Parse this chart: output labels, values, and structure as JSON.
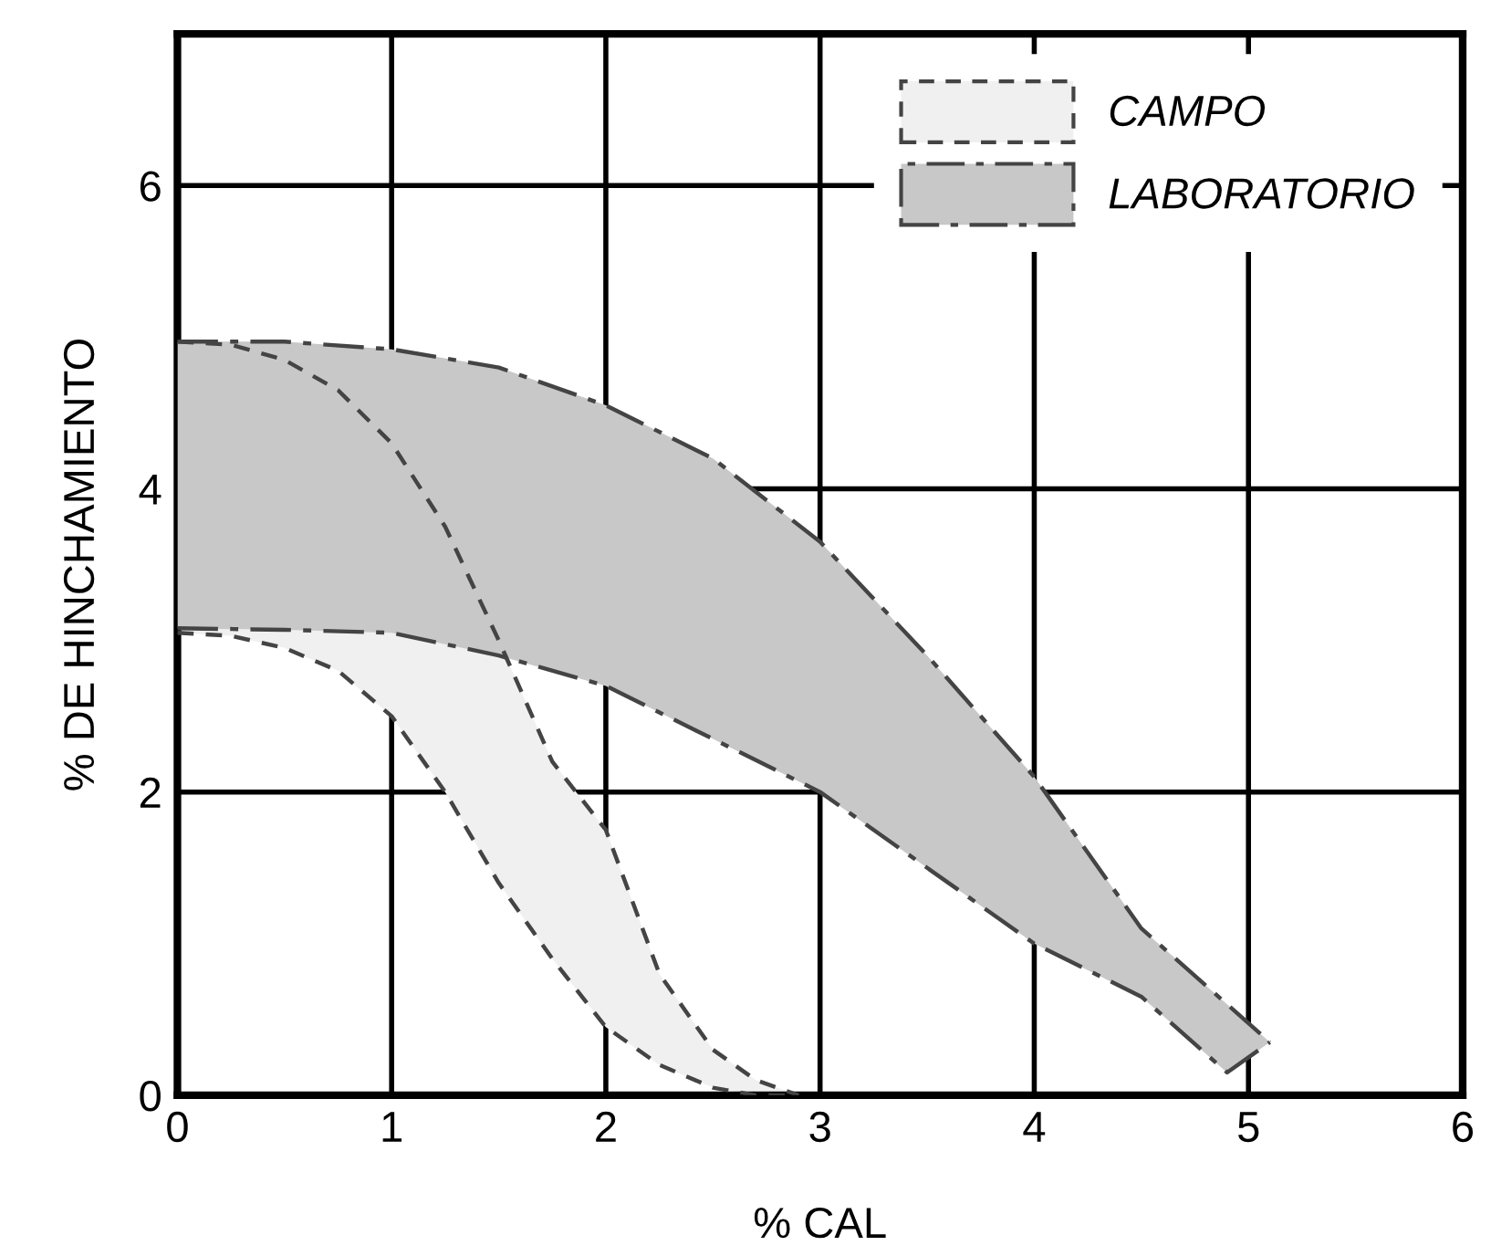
{
  "chart_data": {
    "type": "area",
    "xlabel": "% CAL",
    "ylabel": "% DE HINCHAMIENTO",
    "xlim": [
      0,
      6
    ],
    "ylim": [
      0,
      7
    ],
    "xticks": [
      0,
      1,
      2,
      3,
      4,
      5,
      6
    ],
    "yticks": [
      0,
      2,
      4,
      6
    ],
    "grid": true,
    "legend": "top right",
    "series": [
      {
        "name": "CAMPO",
        "color": "#f0f0f0",
        "line_style": "dashed",
        "x": [
          0,
          0.25,
          0.5,
          0.75,
          1,
          1.25,
          1.5,
          1.75,
          2,
          2.25,
          2.5,
          2.7,
          2.9
        ],
        "values": [
          4.97,
          4.95,
          4.85,
          4.65,
          4.3,
          3.75,
          3.0,
          2.2,
          1.75,
          0.8,
          0.3,
          0.1,
          0
        ]
      },
      {
        "type": "line",
        "color": "#444444",
        "line_style": "dashed",
        "x": [
          0,
          0.25,
          0.5,
          0.75,
          1,
          1.25,
          1.5,
          1.75,
          2,
          2.25,
          2.5,
          2.7,
          2.9
        ],
        "values": [
          3.05,
          3.03,
          2.95,
          2.8,
          2.5,
          2.0,
          1.4,
          0.9,
          0.45,
          0.2,
          0.05,
          0,
          0
        ]
      },
      {
        "name": "LABORATORIO",
        "color": "#c8c8c8",
        "line_style": "dashdot",
        "x": [
          0,
          0.5,
          1,
          1.5,
          2,
          2.5,
          3,
          3.5,
          4,
          4.5,
          4.9,
          5.1
        ],
        "values": [
          4.97,
          4.97,
          4.92,
          4.8,
          4.55,
          4.2,
          3.65,
          2.9,
          2.1,
          1.1,
          0.6,
          0.35
        ]
      },
      {
        "type": "line",
        "color": "#444444",
        "line_style": "dashdot",
        "x": [
          0,
          0.5,
          1,
          1.5,
          2,
          2.5,
          3,
          3.5,
          4,
          4.5,
          4.9,
          5.1
        ],
        "values": [
          3.08,
          3.07,
          3.05,
          2.9,
          2.7,
          2.35,
          2.0,
          1.5,
          1.0,
          0.65,
          0.15,
          0.35
        ]
      }
    ]
  }
}
